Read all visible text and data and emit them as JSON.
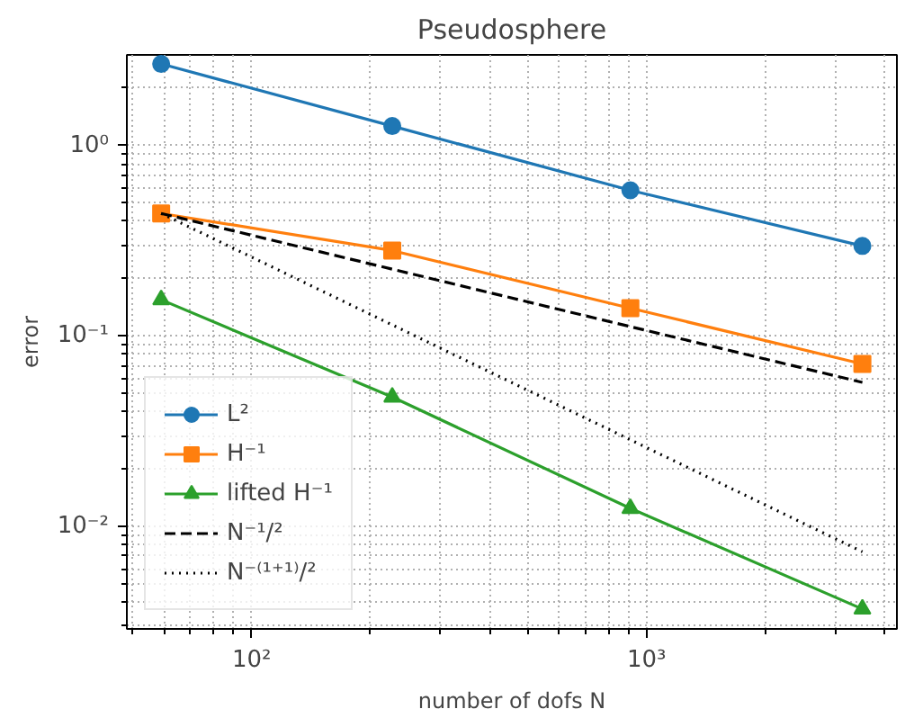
{
  "chart_data": {
    "type": "line",
    "title": "Pseudosphere",
    "xlabel": "number of dofs N",
    "ylabel": "error",
    "x": [
      59,
      227,
      910,
      3520
    ],
    "series": [
      {
        "name": "L²",
        "color": "#1f77b4",
        "marker": "circle",
        "line_style": "solid",
        "values": [
          2.68,
          1.265,
          0.582,
          0.297
        ]
      },
      {
        "name": "H⁻¹",
        "color": "#ff7f0e",
        "marker": "square",
        "line_style": "solid",
        "values": [
          0.44,
          0.281,
          0.14,
          0.0713
        ]
      },
      {
        "name": "lifted H⁻¹",
        "color": "#2ca02c",
        "marker": "triangle",
        "line_style": "solid",
        "values": [
          0.155,
          0.0478,
          0.01245,
          0.00369
        ]
      },
      {
        "name": "N⁻¹/²",
        "color": "#000000",
        "marker": "none",
        "line_style": "dashed",
        "values": [
          0.44,
          0.2243,
          0.112,
          0.0571
        ]
      },
      {
        "name": "N⁻⁽¹⁺¹⁾/²",
        "color": "#000000",
        "marker": "none",
        "line_style": "dotted",
        "values": [
          0.44,
          0.1144,
          0.02853,
          0.00737
        ]
      }
    ],
    "log": "xy",
    "xlim": [
      48.3,
      4305
    ],
    "ylim": [
      0.0029,
      2.99
    ],
    "xticks": [
      {
        "value": 100,
        "label": "10²"
      },
      {
        "value": 1000,
        "label": "10³"
      }
    ],
    "yticks": [
      {
        "value": 0.01,
        "label": "10⁻²"
      },
      {
        "value": 0.1,
        "label": "10⁻¹"
      },
      {
        "value": 1,
        "label": "10⁰"
      }
    ],
    "grid": true,
    "legend": "bottom left"
  }
}
